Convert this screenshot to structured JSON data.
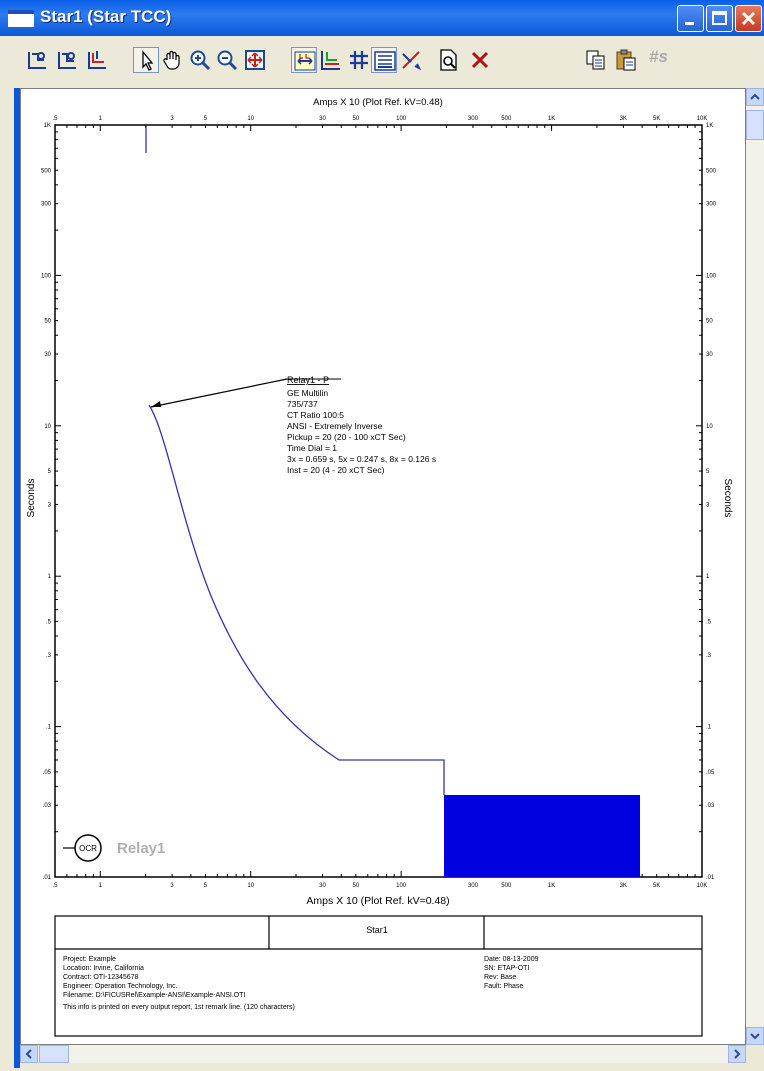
{
  "window": {
    "title": "Star1 (Star TCC)"
  },
  "toolbar": {
    "hash_s_label": "#s"
  },
  "plot": {
    "top_axis_title": "Amps  X  10  (Plot Ref. kV=0.48)",
    "bottom_axis_title": "Amps  X  10  (Plot Ref. kV=0.48)",
    "left_axis_title": "Seconds",
    "right_axis_title": "Seconds",
    "x_ticks": [
      ".5",
      "1",
      "3",
      "5",
      "10",
      "30",
      "50",
      "100",
      "300",
      "500",
      "1K",
      "3K",
      "5K",
      "10K"
    ],
    "y_ticks": [
      "1K",
      "500",
      "300",
      "100",
      "50",
      "30",
      "10",
      "5",
      "3",
      "1",
      ".5",
      ".3",
      ".1",
      ".05",
      ".03",
      ".01"
    ],
    "annotation": {
      "title": "Relay1 - P",
      "lines": [
        "GE Multilin",
        "735/737",
        "CT Ratio 100:5",
        "ANSI - Extremely Inverse",
        "Pickup = 20 (20 - 100  xCT Sec)",
        "Time Dial = 1",
        "3x = 0.659 s, 5x = 0.247 s, 8x = 0.126 s",
        "Inst = 20 (4 - 20  xCT Sec)"
      ]
    },
    "device_symbol": "OCR",
    "device_label": "Relay1",
    "curve_color": "#3333AA",
    "fill_color": "#0000E0"
  },
  "title_block": {
    "center_title": "Star1",
    "left_lines": [
      "Project:   Example",
      "Location:  Irvine, California",
      "Contract:  OTI-12345678",
      "Engineer:  Operation Technology, Inc.",
      "Filename:  D:\\FICUSRel\\Example-ANSI\\Example-ANSI.OTI"
    ],
    "right_lines": [
      "Date:  08-13-2009",
      "SN:    ETAP-OTI",
      "Rev:   Base",
      "Fault:  Phase"
    ],
    "footer_line": "This info is printed on every output report, 1st remark line.  (120 characters)"
  }
}
